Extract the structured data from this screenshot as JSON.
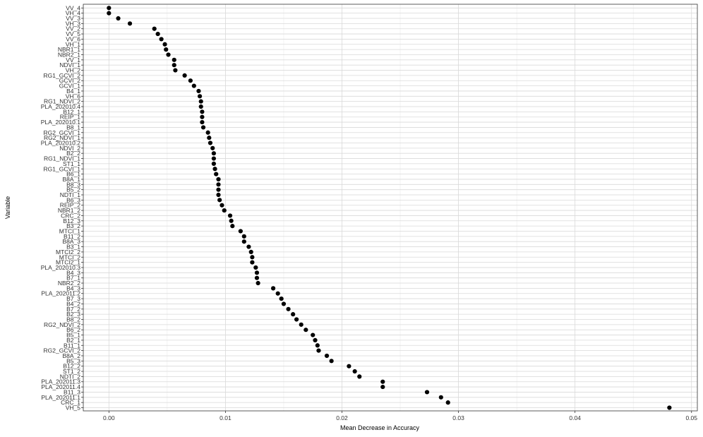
{
  "chart_data": {
    "type": "scatter",
    "title": "",
    "xlabel": "Mean Decrease in Accuracy",
    "ylabel": "Variable",
    "xlim": [
      -0.0022,
      0.0505
    ],
    "xticks": [
      0.0,
      0.01,
      0.02,
      0.03,
      0.04,
      0.05
    ],
    "xtick_labels": [
      "0.00",
      "0.01",
      "0.02",
      "0.03",
      "0.04",
      "0.05"
    ],
    "grid": true,
    "categories": [
      "VV_4",
      "VH_4",
      "VV_3",
      "VH_3",
      "VV_2",
      "VV_5",
      "VV_6",
      "VH_1",
      "NBR1_1",
      "NBR2_1",
      "VV_1",
      "NDVI_1",
      "VH_2",
      "RG1_GCVI_2",
      "GCVI_2",
      "GCVI_1",
      "B4_1",
      "VH_6",
      "RG1_NDVI_2",
      "PLA_202010.4",
      "B12_1",
      "REIP_1",
      "PLA_202010.1",
      "B8_1",
      "RG2_GCVI_1",
      "RG2_NDVI_1",
      "PLA_202010.2",
      "NDVI_2",
      "B2_2",
      "RG1_NDVI_1",
      "ST1_1",
      "RG1_GCVI_1",
      "B6_1",
      "B8A_1",
      "B8_3",
      "B5_2",
      "NDTI_1",
      "B6_3",
      "REIP_2",
      "NBR1_2",
      "CRC_2",
      "B12_3",
      "B3_2",
      "MTCI_1",
      "B11_2",
      "B8A_3",
      "B3_1",
      "MTCI2_2",
      "MTCI_2",
      "MTCI2_1",
      "PLA_202010.3",
      "B4_3",
      "B7_1",
      "NBR2_2",
      "B4_3",
      "PLA_202011.2",
      "B7_3",
      "B4_2",
      "B7_2",
      "B2_3",
      "B8_2",
      "RG2_NDVI_2",
      "B6_2",
      "B5_1",
      "B2_1",
      "B11_1",
      "RG2_GCVI_2",
      "B8A_2",
      "B5_3",
      "B12_2",
      "ST1_2",
      "NDTI_2",
      "PLA_202011.3",
      "PLA_202011.4",
      "B11_3",
      "PLA_202011.1",
      "CRC_1",
      "VH_5"
    ],
    "values": [
      0.0,
      0.0,
      0.0008,
      0.0018,
      0.0039,
      0.0042,
      0.0045,
      0.0048,
      0.0049,
      0.0051,
      0.0056,
      0.0056,
      0.0057,
      0.0065,
      0.007,
      0.0073,
      0.0077,
      0.0078,
      0.0079,
      0.0079,
      0.008,
      0.008,
      0.008,
      0.0081,
      0.0085,
      0.0086,
      0.0087,
      0.0089,
      0.009,
      0.009,
      0.009,
      0.0091,
      0.0092,
      0.0094,
      0.0094,
      0.0094,
      0.0094,
      0.0095,
      0.0097,
      0.0099,
      0.0104,
      0.0105,
      0.0106,
      0.0113,
      0.0116,
      0.0116,
      0.012,
      0.0122,
      0.0123,
      0.0123,
      0.0126,
      0.0127,
      0.0127,
      0.0128,
      0.0141,
      0.0145,
      0.0148,
      0.015,
      0.0154,
      0.0158,
      0.0161,
      0.0165,
      0.0169,
      0.0175,
      0.0177,
      0.0179,
      0.018,
      0.0187,
      0.0191,
      0.0206,
      0.0211,
      0.0215,
      0.0235,
      0.0235,
      0.0273,
      0.0285,
      0.0291,
      0.0481
    ]
  }
}
